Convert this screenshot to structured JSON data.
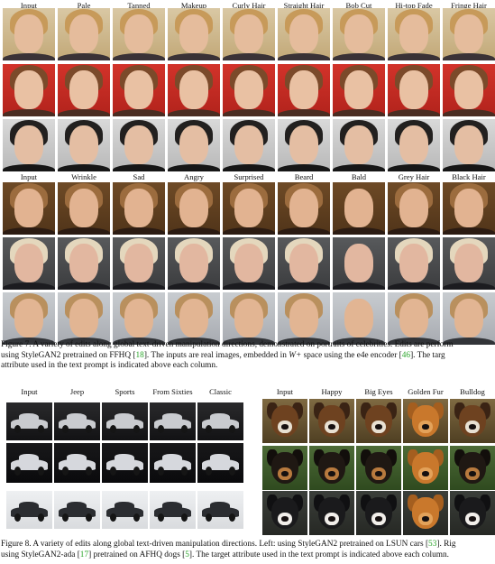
{
  "figure7": {
    "header_top": [
      "Input",
      "Pale",
      "Tanned",
      "Makeup",
      "Curly Hair",
      "Straight Hair",
      "Bob Cut",
      "Hi-top Fade",
      "Fringe Hair"
    ],
    "header_bottom": [
      "Input",
      "Wrinkle",
      "Sad",
      "Angry",
      "Surprised",
      "Beard",
      "Bald",
      "Grey Hair",
      "Black Hair"
    ],
    "caption": {
      "lead": "Figure 7. A variety of edits along global text-driven manipulation directions, demonstrated on portraits of celebrities. Edits are perform",
      "line2_a": "using StyleGAN2 pretrained on FFHQ [",
      "line2_cite1": "18",
      "line2_b": "]. The inputs are real images, embedded in ",
      "line2_w": "W+",
      "line2_c": " space using the e4e encoder [",
      "line2_cite2": "46",
      "line2_d": "]. The targ",
      "line3": "attribute used in the text prompt is indicated above each column."
    },
    "rows": [
      {
        "bg": [
          "#d9c8a4",
          "#c2a877"
        ],
        "skin": "#e5bc9c",
        "hair": "#c79a5a",
        "shoulder": "#3a3236"
      },
      {
        "bg": [
          "#d2332a",
          "#b2231c"
        ],
        "skin": "#e9c1a3",
        "hair": "#7b4a2a",
        "shoulder": "#4a2d22"
      },
      {
        "bg": [
          "#d9d9d9",
          "#b8b8b8"
        ],
        "skin": "#e4bea3",
        "hair": "#22201f",
        "shoulder": "#161616"
      },
      {
        "bg": [
          "#6e4a26",
          "#503419"
        ],
        "skin": "#e2b391",
        "hair": "#9c6c3e",
        "shoulder": "#2b1b12"
      },
      {
        "bg": [
          "#585a5c",
          "#3b3c3e"
        ],
        "skin": "#e2b7a0",
        "hair": "#e4d7bd",
        "shoulder": "#1c1c20"
      },
      {
        "bg": [
          "#c8ccd0",
          "#a7aab0"
        ],
        "skin": "#e2b593",
        "hair": "#b9905e",
        "shoulder": "#323438"
      }
    ]
  },
  "figure8": {
    "cars_header": [
      "Input",
      "Jeep",
      "Sports",
      "From Sixties",
      "Classic"
    ],
    "dogs_header": [
      "Input",
      "Happy",
      "Big Eyes",
      "Golden Fur",
      "Bulldog"
    ],
    "car_rows": [
      {
        "bg": [
          "#2a2a2c",
          "#121214"
        ],
        "body": "#c9cbcf",
        "ground": "#1a1a1a"
      },
      {
        "bg": [
          "#18181a",
          "#0a0a0c"
        ],
        "body": "#d6d8dd",
        "ground": "#1c1c1e"
      },
      {
        "bg": [
          "#eef0f2",
          "#d9dbde"
        ],
        "body": "#2b2d31",
        "ground": "#cfcfcf"
      }
    ],
    "dog_rows": [
      {
        "bg": [
          "#7f6a42",
          "#4f3f22"
        ],
        "fur": "#6e4220",
        "accent": "#e8e0d2",
        "ear": "#3a2314"
      },
      {
        "bg": [
          "#4d6b37",
          "#2f4a1f"
        ],
        "fur": "#1f1813",
        "accent": "#b87a3e",
        "ear": "#120e0b"
      },
      {
        "bg": [
          "#3b3f3a",
          "#262824"
        ],
        "fur": "#1a1a1c",
        "accent": "#f1eeea",
        "ear": "#101012"
      }
    ],
    "caption": {
      "line1_a": "Figure 8. A variety of edits along global text-driven manipulation directions. Left: using StyleGAN2 pretrained on LSUN cars [",
      "line1_cite": "53",
      "line1_b": "]. Rig",
      "line2_a": "using StyleGAN2-ada [",
      "line2_cite1": "17",
      "line2_b": "] pretrained on AFHQ dogs [",
      "line2_cite2": "5",
      "line2_c": "]. The target attribute used in the text prompt is indicated above each column."
    }
  },
  "colors": {
    "citation": "#2aa52a",
    "text": "#111111"
  }
}
